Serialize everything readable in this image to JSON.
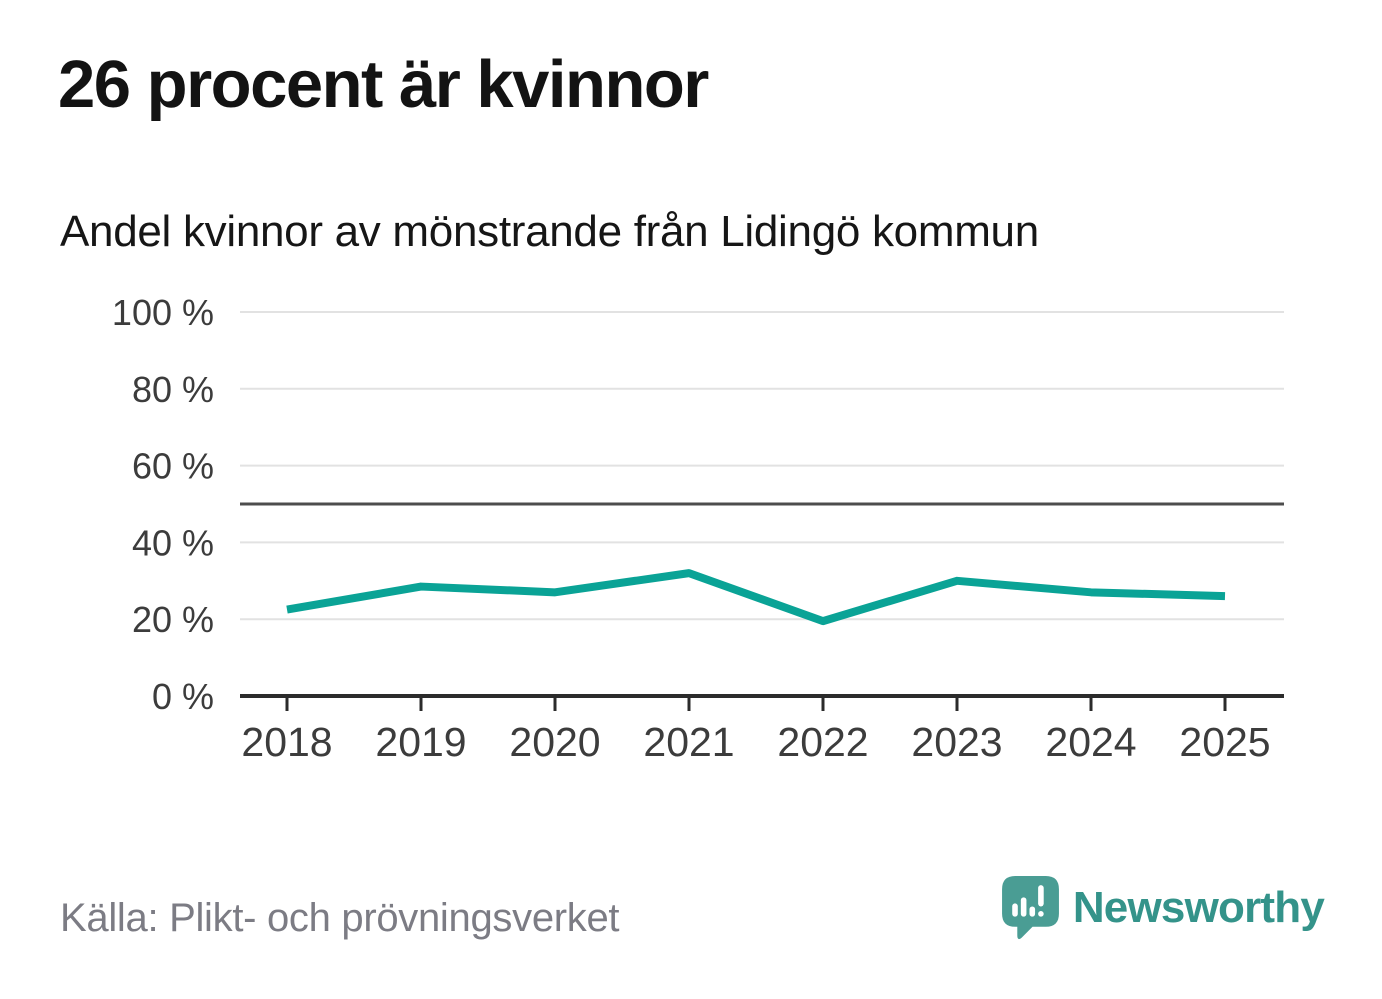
{
  "chart_data": {
    "type": "line",
    "title": "26 procent är kvinnor",
    "subtitle": "Andel kvinnor av mönstrande från Lidingö kommun",
    "x": [
      "2018",
      "2019",
      "2020",
      "2021",
      "2022",
      "2023",
      "2024",
      "2025"
    ],
    "series": [
      {
        "name": "Andel kvinnor av mönstrande",
        "values": [
          22.5,
          28.5,
          27,
          32,
          19.5,
          30,
          27,
          26
        ]
      }
    ],
    "unit": "%",
    "ylim": [
      0,
      100
    ],
    "yticks": [
      0,
      20,
      40,
      60,
      80,
      100
    ],
    "ytick_labels": [
      "0 %",
      "20 %",
      "40 %",
      "60 %",
      "80 %",
      "100 %"
    ],
    "reference_line": 50,
    "grid": "horizontal",
    "legend": "none"
  },
  "footer": {
    "source": "Källa: Plikt- och prövningsverket",
    "logo_text": "Newsworthy"
  },
  "colors": {
    "line": "#0aa396",
    "grid": "#e2e2e2",
    "reference": "#4d4d4d",
    "axis": "#2b2b2b",
    "tick_text": "#3c3c3c",
    "title_text": "#131313",
    "muted_text": "#7c7c84",
    "logo_teal": "#4a9d94",
    "logo_text_teal": "#34938a"
  }
}
